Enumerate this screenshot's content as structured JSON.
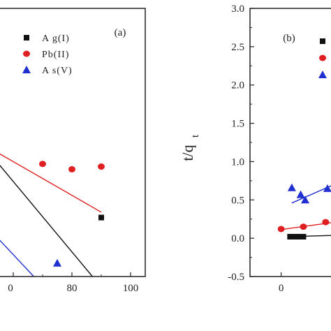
{
  "chart_data": [
    {
      "type": "scatter",
      "panel_label": "(a)",
      "x_ticks": [
        "0",
        "80",
        "100"
      ],
      "xlim": [
        55,
        105
      ],
      "ylim": [
        0,
        1
      ],
      "legend": {
        "position": "top-right",
        "entries": [
          {
            "label": "A g(I)",
            "marker": "square",
            "color": "#111111"
          },
          {
            "label": "Pb(II)",
            "marker": "circle",
            "color": "#e02020"
          },
          {
            "label": "A s(V)",
            "marker": "triangle",
            "color": "#2030d0"
          }
        ]
      },
      "series": [
        {
          "marker": "square",
          "color": "#111111",
          "points": [
            [
              90,
              0.22
            ]
          ]
        },
        {
          "marker": "circle",
          "color": "#e02020",
          "points": [
            [
              70,
              0.42
            ],
            [
              80,
              0.4
            ],
            [
              90,
              0.41
            ]
          ]
        },
        {
          "marker": "triangle",
          "color": "#2030d0",
          "points": [
            [
              75,
              0.05
            ]
          ]
        }
      ],
      "fit_lines": [
        {
          "color": "#e02020",
          "from": [
            55,
            0.46
          ],
          "to": [
            90,
            0.24
          ]
        },
        {
          "color": "#111111",
          "from": [
            55,
            0.42
          ],
          "to": [
            87,
            0.0
          ]
        },
        {
          "color": "#2030d0",
          "from": [
            55,
            0.14
          ],
          "to": [
            67,
            0.0
          ]
        }
      ]
    },
    {
      "type": "scatter",
      "panel_label": "(b)",
      "ylabel_main": "t/q",
      "ylabel_sub": "t",
      "y_ticks": [
        "-0.5",
        "0.0",
        "0.5",
        "1.0",
        "1.5",
        "2.0",
        "2.5",
        "3.0"
      ],
      "x_ticks": [
        "0"
      ],
      "ylim": [
        -0.5,
        3.0
      ],
      "xlim": [
        -35,
        67
      ],
      "legend": {
        "position": "top-right",
        "entries": [
          {
            "marker": "square",
            "color": "#111111"
          },
          {
            "marker": "circle",
            "color": "#e02020"
          },
          {
            "marker": "triangle",
            "color": "#2030d0"
          }
        ]
      },
      "series": [
        {
          "marker": "square",
          "color": "#111111",
          "points": [
            [
              10,
              0.02
            ],
            [
              15,
              0.02
            ],
            [
              20,
              0.02
            ],
            [
              25,
              0.02
            ]
          ]
        },
        {
          "marker": "circle",
          "color": "#e02020",
          "points": [
            [
              0,
              0.12
            ],
            [
              25,
              0.15
            ],
            [
              50,
              0.21
            ]
          ]
        },
        {
          "marker": "triangle",
          "color": "#2030d0",
          "points": [
            [
              12,
              0.66
            ],
            [
              22,
              0.57
            ],
            [
              27,
              0.5
            ],
            [
              52,
              0.65
            ]
          ]
        }
      ],
      "fit_lines": [
        {
          "color": "#111111",
          "from": [
            8,
            0.02
          ],
          "to": [
            67,
            0.04
          ]
        },
        {
          "color": "#e02020",
          "from": [
            -2,
            0.11
          ],
          "to": [
            67,
            0.22
          ]
        },
        {
          "color": "#2030d0",
          "from": [
            12,
            0.46
          ],
          "to": [
            67,
            0.74
          ]
        }
      ]
    }
  ]
}
